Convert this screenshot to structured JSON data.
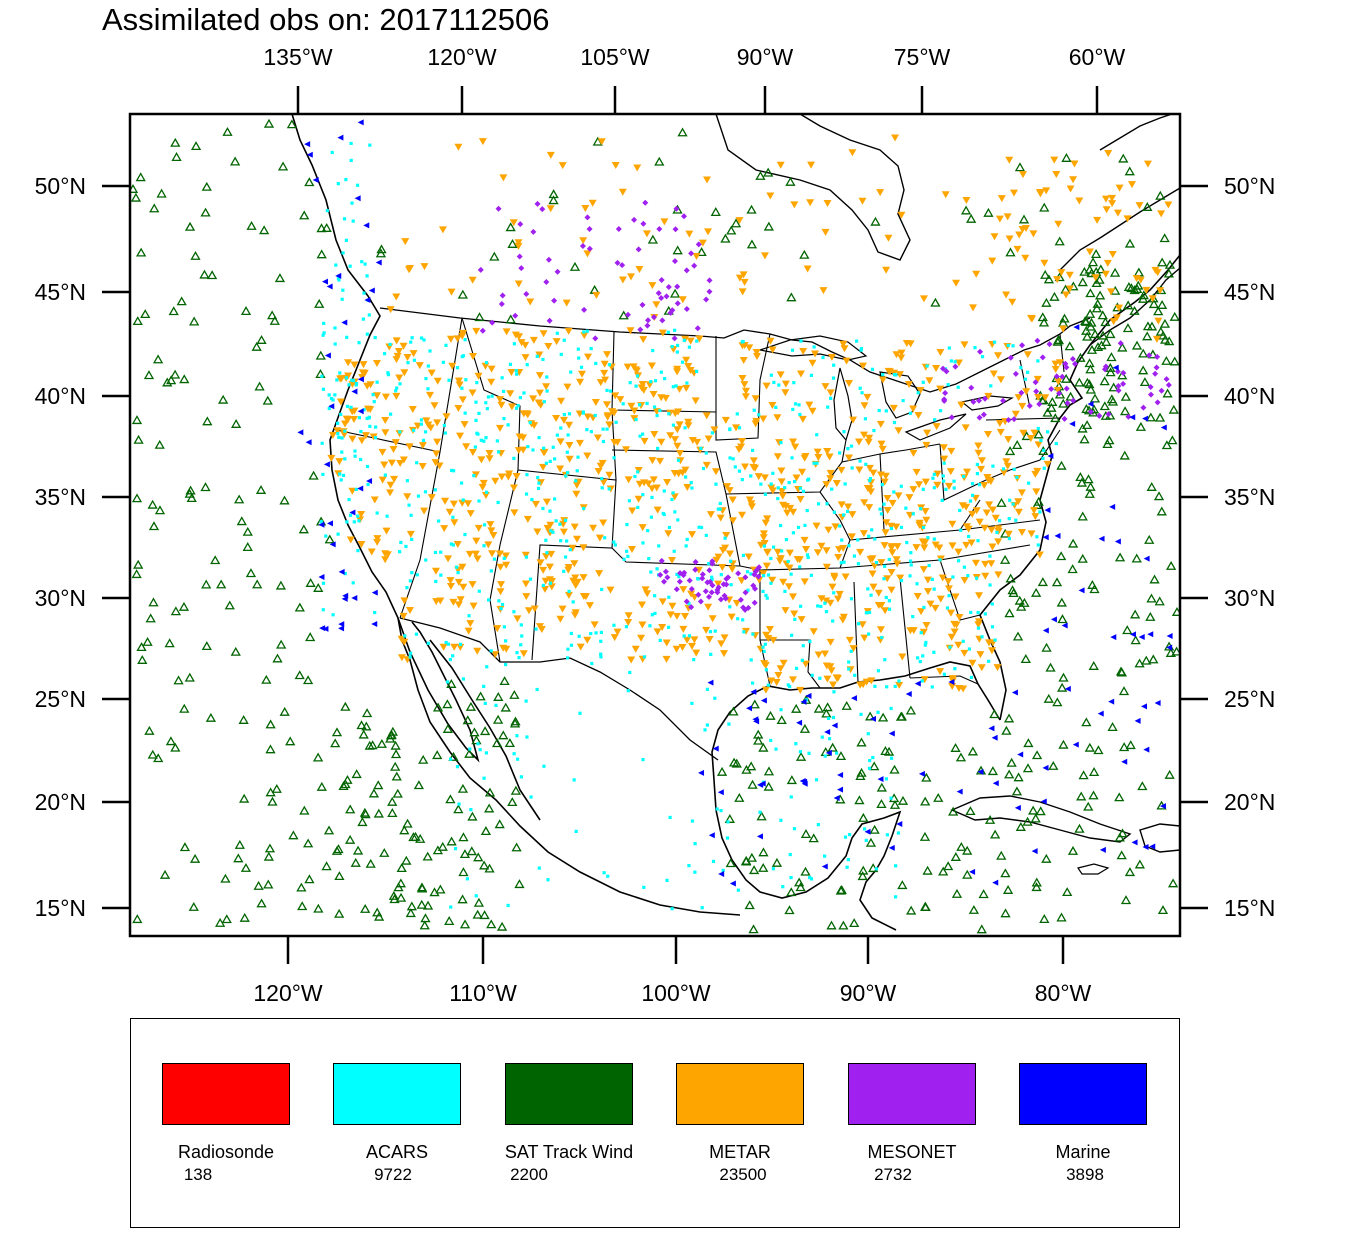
{
  "title": "Assimilated obs on: 2017112506",
  "top_axis_labels": [
    "135°W",
    "120°W",
    "105°W",
    "90°W",
    "75°W",
    "60°W"
  ],
  "bottom_axis_labels": [
    "120°W",
    "110°W",
    "100°W",
    "90°W",
    "80°W"
  ],
  "left_axis_labels": [
    "50°N",
    "45°N",
    "40°N",
    "35°N",
    "30°N",
    "25°N",
    "20°N",
    "15°N"
  ],
  "right_axis_labels": [
    "50°N",
    "45°N",
    "40°N",
    "35°N",
    "30°N",
    "25°N",
    "20°N",
    "15°N"
  ],
  "legend": [
    {
      "name": "Radiosonde",
      "count": "138",
      "color": "#ff0000"
    },
    {
      "name": "ACARS",
      "count": "9722",
      "color": "#00ffff"
    },
    {
      "name": "SAT Track Wind",
      "count": "2200",
      "color": "#006400"
    },
    {
      "name": "METAR",
      "count": "23500",
      "color": "#ffa500"
    },
    {
      "name": "MESONET",
      "count": "2732",
      "color": "#a020f0"
    },
    {
      "name": "Marine",
      "count": "3898",
      "color": "#0000ff"
    }
  ],
  "observation_types": {
    "Radiosonde": {
      "marker": "circle",
      "color": "#ff0000"
    },
    "ACARS": {
      "marker": "square-dot",
      "color": "#00ffff"
    },
    "SAT Track Wind": {
      "marker": "open-triangle-up",
      "color": "#006400"
    },
    "METAR": {
      "marker": "triangle-down",
      "color": "#ffa500"
    },
    "MESONET": {
      "marker": "diamond",
      "color": "#a020f0"
    },
    "Marine": {
      "marker": "triangle-left",
      "color": "#0000ff"
    }
  }
}
